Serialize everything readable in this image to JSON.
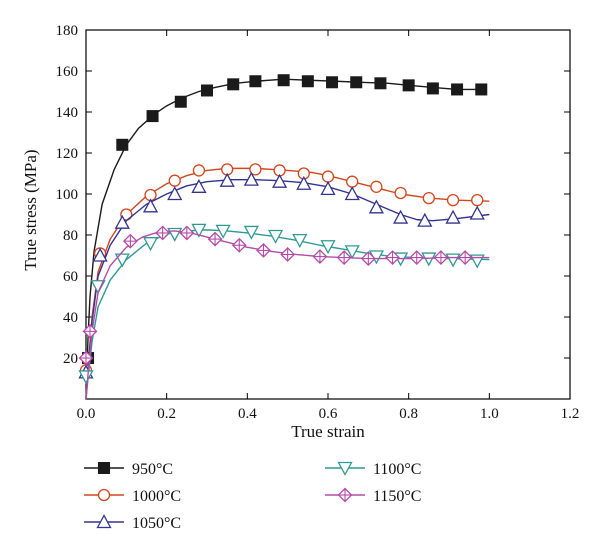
{
  "chart_data": {
    "type": "line",
    "xlabel": "True strain",
    "ylabel": "True stress (MPa)",
    "xlim": [
      0.0,
      1.2
    ],
    "ylim": [
      0,
      180
    ],
    "xticks": [
      "0.0",
      "0.2",
      "0.4",
      "0.6",
      "0.8",
      "1.0",
      "1.2"
    ],
    "yticks": [
      "20",
      "40",
      "60",
      "80",
      "100",
      "120",
      "140",
      "160",
      "180"
    ],
    "grid": false,
    "legend_position": "bottom",
    "series": [
      {
        "name": "950°C",
        "color": "#1a1a1a",
        "marker": "square-filled",
        "x": [
          0.0,
          0.005,
          0.01,
          0.02,
          0.04,
          0.07,
          0.1,
          0.13,
          0.17,
          0.2,
          0.24,
          0.28,
          0.32,
          0.37,
          0.42,
          0.49,
          0.55,
          0.62,
          0.68,
          0.75,
          0.8,
          0.86,
          0.92,
          0.98
        ],
        "y": [
          0,
          30,
          50,
          72,
          95,
          112,
          124,
          132,
          139,
          143,
          147,
          150,
          152,
          154,
          155,
          156,
          155.5,
          155,
          154.5,
          154,
          153,
          152,
          151,
          151
        ],
        "mx": [
          0.005,
          0.09,
          0.165,
          0.235,
          0.3,
          0.365,
          0.42,
          0.49,
          0.55,
          0.61,
          0.67,
          0.73,
          0.8,
          0.86,
          0.92,
          0.98
        ],
        "my": [
          20,
          124,
          138,
          145,
          150.5,
          153.5,
          155,
          155.5,
          155,
          154.5,
          154.5,
          154,
          153,
          151.5,
          151,
          151
        ]
      },
      {
        "name": "1000°C",
        "color": "#d2461e",
        "marker": "circle-open",
        "x": [
          0.0,
          0.005,
          0.015,
          0.03,
          0.06,
          0.1,
          0.15,
          0.2,
          0.25,
          0.3,
          0.35,
          0.42,
          0.5,
          0.56,
          0.6,
          0.66,
          0.72,
          0.78,
          0.85,
          0.92,
          1.0
        ],
        "y": [
          0,
          15,
          40,
          62,
          78,
          90,
          99,
          105,
          109,
          111.5,
          112.5,
          112.5,
          111.5,
          110.5,
          109,
          106,
          103,
          100,
          98,
          97,
          96.5
        ],
        "mx": [
          0.0,
          0.035,
          0.1,
          0.16,
          0.22,
          0.28,
          0.35,
          0.42,
          0.48,
          0.54,
          0.6,
          0.66,
          0.72,
          0.78,
          0.85,
          0.91,
          0.97
        ],
        "my": [
          14,
          71,
          90,
          99.5,
          106.5,
          111.5,
          112,
          112,
          111.5,
          110,
          108.5,
          106,
          103.5,
          100.5,
          98,
          97,
          97
        ]
      },
      {
        "name": "1050°C",
        "color": "#33338f",
        "marker": "triangle-open",
        "x": [
          0.0,
          0.005,
          0.015,
          0.03,
          0.06,
          0.1,
          0.15,
          0.2,
          0.25,
          0.3,
          0.36,
          0.42,
          0.48,
          0.54,
          0.6,
          0.66,
          0.72,
          0.78,
          0.82,
          0.86,
          0.92,
          1.0
        ],
        "y": [
          0,
          14,
          38,
          60,
          75,
          87,
          95,
          100,
          104,
          106,
          107,
          107,
          106.5,
          105.5,
          103.5,
          100,
          95,
          90,
          87.5,
          87,
          88,
          90
        ],
        "mx": [
          0.0,
          0.035,
          0.09,
          0.16,
          0.22,
          0.28,
          0.35,
          0.41,
          0.48,
          0.54,
          0.6,
          0.66,
          0.72,
          0.78,
          0.84,
          0.91,
          0.97
        ],
        "my": [
          13,
          70,
          86,
          94,
          100,
          103.5,
          106.5,
          107,
          106,
          105,
          102.5,
          100,
          93.5,
          88.5,
          87,
          88.5,
          90.5
        ]
      },
      {
        "name": "1100°C",
        "color": "#2e9a93",
        "marker": "triangle-down-open",
        "x": [
          0.0,
          0.005,
          0.015,
          0.03,
          0.06,
          0.1,
          0.15,
          0.2,
          0.25,
          0.3,
          0.35,
          0.4,
          0.46,
          0.52,
          0.58,
          0.64,
          0.7,
          0.76,
          0.82,
          0.9,
          1.0
        ],
        "y": [
          0,
          10,
          28,
          45,
          58,
          68,
          76,
          80.5,
          82,
          82.5,
          82,
          81,
          79.5,
          77.5,
          75,
          73,
          71,
          69.5,
          69,
          68.5,
          68
        ],
        "mx": [
          0.0,
          0.03,
          0.09,
          0.16,
          0.22,
          0.28,
          0.34,
          0.41,
          0.47,
          0.53,
          0.6,
          0.66,
          0.72,
          0.78,
          0.85,
          0.91,
          0.97
        ],
        "my": [
          11,
          55,
          68,
          76,
          80.5,
          82.5,
          82,
          81.5,
          79.5,
          77.5,
          74.5,
          72,
          69.5,
          68.5,
          68.5,
          68,
          67.5
        ]
      },
      {
        "name": "1150°C",
        "color": "#b54ba8",
        "marker": "diamond-cross",
        "x": [
          0.0,
          0.005,
          0.015,
          0.03,
          0.06,
          0.1,
          0.14,
          0.18,
          0.22,
          0.26,
          0.3,
          0.34,
          0.4,
          0.46,
          0.52,
          0.58,
          0.64,
          0.7,
          0.76,
          0.82,
          0.9,
          1.0
        ],
        "y": [
          0,
          12,
          33,
          52,
          65,
          74,
          79,
          81.5,
          82,
          81,
          79,
          77,
          74,
          72,
          70.5,
          69.5,
          69,
          68.5,
          68.5,
          68.5,
          69,
          69
        ],
        "mx": [
          0.0,
          0.01,
          0.11,
          0.19,
          0.25,
          0.32,
          0.38,
          0.44,
          0.5,
          0.58,
          0.64,
          0.7,
          0.76,
          0.82,
          0.88,
          0.94
        ],
        "my": [
          20,
          33,
          77,
          81,
          81,
          78,
          75,
          72.5,
          70.5,
          69.5,
          69,
          68.5,
          69,
          69,
          69,
          69
        ]
      }
    ]
  }
}
